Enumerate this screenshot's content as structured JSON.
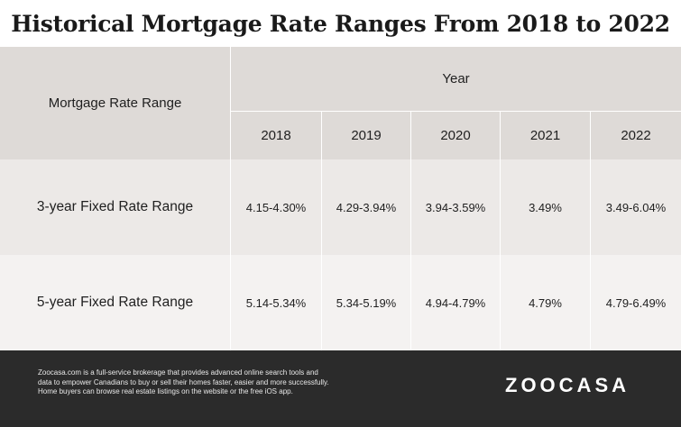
{
  "title": "Historical Mortgage Rate Ranges From 2018 to 2022",
  "table": {
    "row_header": "Mortgage Rate Range",
    "group_header": "Year",
    "years": [
      "2018",
      "2019",
      "2020",
      "2021",
      "2022"
    ],
    "rows": [
      {
        "label": "3-year Fixed Rate Range",
        "values": [
          "4.15-4.30%",
          "4.29-3.94%",
          "3.94-3.59%",
          "3.49%",
          "3.49-6.04%"
        ]
      },
      {
        "label": "5-year Fixed Rate Range",
        "values": [
          "5.14-5.34%",
          "5.34-5.19%",
          "4.94-4.79%",
          "4.79%",
          "4.79-6.49%"
        ]
      }
    ]
  },
  "footer": {
    "lines": [
      "Zoocasa.com is a full-service brokerage that provides advanced online search tools and",
      "data to empower Canadians to buy or sell their homes faster, easier and more successfully.",
      "Home buyers can browse real estate listings on the website or the free iOS app."
    ],
    "logo_text": "ZOOCASA"
  },
  "colors": {
    "header_bg": "#dedad7",
    "row1_bg": "#ece9e7",
    "row2_bg": "#f4f2f1",
    "footer_bg": "#2b2b2b"
  }
}
